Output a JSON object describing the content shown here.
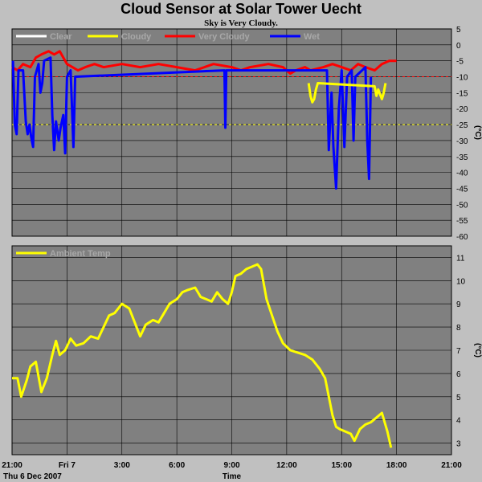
{
  "title": "Cloud Sensor at Solar Tower Uecht",
  "subtitle": "Sky is Very Cloudy.",
  "colors": {
    "background": "#c0c0c0",
    "plot_background": "#808080",
    "grid": "#000000",
    "clear": "#ffffff",
    "cloudy": "#ffff00",
    "very_cloudy": "#ff0000",
    "wet": "#0000ff",
    "ambient": "#ffff00"
  },
  "x_axis": {
    "ticks": [
      "21:00",
      "Fri 7",
      "3:00",
      "6:00",
      "9:00",
      "12:00",
      "15:00",
      "18:00",
      "21:00"
    ],
    "start_label": "Thu 6 Dec 2007",
    "label": "Time"
  },
  "chart_data": [
    {
      "type": "line",
      "legend": [
        "Clear",
        "Cloudy",
        "Very Cloudy",
        "Wet"
      ],
      "ylabel": "(°C)",
      "ylim": [
        -60,
        5
      ],
      "yticks": [
        5,
        0,
        -5,
        -10,
        -15,
        -20,
        -25,
        -30,
        -35,
        -40,
        -45,
        -50,
        -55,
        -60
      ],
      "reference_lines": [
        {
          "name": "Very Cloudy",
          "value": -10,
          "color": "#ff0000"
        },
        {
          "name": "Cloudy",
          "value": -25,
          "color": "#ffff00"
        }
      ],
      "series": [
        {
          "name": "Very Cloudy",
          "color": "#ff0000",
          "points": [
            [
              0,
              -7
            ],
            [
              0.3,
              -8
            ],
            [
              0.6,
              -6
            ],
            [
              1.0,
              -7
            ],
            [
              1.3,
              -4
            ],
            [
              1.6,
              -3
            ],
            [
              2.0,
              -2
            ],
            [
              2.3,
              -3
            ],
            [
              2.6,
              -2
            ],
            [
              3.0,
              -6
            ],
            [
              3.3,
              -7
            ],
            [
              3.6,
              -8
            ],
            [
              4.0,
              -7
            ],
            [
              4.5,
              -6
            ],
            [
              5.0,
              -7
            ],
            [
              6.0,
              -6
            ],
            [
              7.0,
              -7
            ],
            [
              8.0,
              -6
            ],
            [
              9.0,
              -7
            ],
            [
              10.0,
              -8
            ],
            [
              11.0,
              -6
            ],
            [
              12.0,
              -7
            ],
            [
              12.5,
              -8
            ],
            [
              13.0,
              -7
            ],
            [
              14.0,
              -6
            ],
            [
              14.8,
              -7
            ],
            [
              15.2,
              -9
            ],
            [
              15.5,
              -8
            ],
            [
              16.0,
              -7
            ],
            [
              16.3,
              -8
            ],
            [
              17.0,
              -7
            ],
            [
              17.5,
              -6
            ],
            [
              18.0,
              -7
            ],
            [
              18.5,
              -8
            ],
            [
              18.9,
              -6
            ],
            [
              19.3,
              -7
            ],
            [
              19.8,
              -8
            ],
            [
              20.2,
              -6
            ],
            [
              20.6,
              -5
            ],
            [
              21.0,
              -5
            ]
          ]
        },
        {
          "name": "Wet",
          "color": "#0000ff",
          "points": [
            [
              0.05,
              -5
            ],
            [
              0.15,
              -25
            ],
            [
              0.25,
              -28
            ],
            [
              0.35,
              -8
            ],
            [
              0.6,
              -8
            ],
            [
              0.75,
              -24
            ],
            [
              0.85,
              -28
            ],
            [
              0.95,
              -25
            ],
            [
              1.05,
              -29
            ],
            [
              1.15,
              -32
            ],
            [
              1.25,
              -10
            ],
            [
              1.45,
              -6
            ],
            [
              1.55,
              -15
            ],
            [
              1.65,
              -12
            ],
            [
              1.75,
              -5
            ],
            [
              2.1,
              -4
            ],
            [
              2.2,
              -22
            ],
            [
              2.3,
              -33
            ],
            [
              2.4,
              -24
            ],
            [
              2.55,
              -30
            ],
            [
              2.65,
              -26
            ],
            [
              2.8,
              -22
            ],
            [
              2.9,
              -34
            ],
            [
              3.0,
              -10
            ],
            [
              3.2,
              -8
            ],
            [
              3.35,
              -32
            ],
            [
              3.45,
              -10
            ],
            [
              11.6,
              -8
            ],
            [
              11.65,
              -26
            ],
            [
              11.7,
              -8
            ],
            [
              17.2,
              -8
            ],
            [
              17.3,
              -33
            ],
            [
              17.45,
              -15
            ],
            [
              17.55,
              -32
            ],
            [
              17.7,
              -45
            ],
            [
              17.85,
              -20
            ],
            [
              18.0,
              -8
            ],
            [
              18.15,
              -32
            ],
            [
              18.3,
              -10
            ],
            [
              18.55,
              -8
            ],
            [
              18.65,
              -30
            ],
            [
              18.75,
              -10
            ],
            [
              19.3,
              -7
            ],
            [
              19.4,
              -30
            ],
            [
              19.5,
              -42
            ],
            [
              19.6,
              -10
            ]
          ]
        },
        {
          "name": "Cloudy",
          "color": "#ffff00",
          "points": [
            [
              16.2,
              -12
            ],
            [
              16.3,
              -16
            ],
            [
              16.4,
              -18
            ],
            [
              16.5,
              -17
            ],
            [
              16.6,
              -14
            ],
            [
              16.7,
              -12
            ],
            [
              19.8,
              -13
            ],
            [
              19.9,
              -16
            ],
            [
              20.0,
              -14
            ],
            [
              20.2,
              -17
            ],
            [
              20.3,
              -15
            ],
            [
              20.4,
              -12
            ]
          ]
        }
      ]
    },
    {
      "type": "line",
      "legend": [
        "Ambient Temp"
      ],
      "ylabel": "(°C)",
      "ylim": [
        2.5,
        11.5
      ],
      "yticks": [
        11,
        10,
        9,
        8,
        7,
        6,
        5,
        4,
        3
      ],
      "series": [
        {
          "name": "Ambient Temp",
          "color": "#ffff00",
          "points": [
            [
              0,
              5.8
            ],
            [
              0.3,
              5.8
            ],
            [
              0.5,
              5.0
            ],
            [
              0.8,
              5.7
            ],
            [
              1.0,
              6.3
            ],
            [
              1.3,
              6.5
            ],
            [
              1.6,
              5.2
            ],
            [
              1.9,
              5.8
            ],
            [
              2.2,
              6.8
            ],
            [
              2.4,
              7.4
            ],
            [
              2.6,
              6.8
            ],
            [
              2.9,
              7.0
            ],
            [
              3.2,
              7.5
            ],
            [
              3.5,
              7.2
            ],
            [
              3.9,
              7.3
            ],
            [
              4.3,
              7.6
            ],
            [
              4.7,
              7.5
            ],
            [
              5.0,
              8.0
            ],
            [
              5.3,
              8.5
            ],
            [
              5.6,
              8.6
            ],
            [
              6.0,
              9.0
            ],
            [
              6.4,
              8.8
            ],
            [
              6.7,
              8.2
            ],
            [
              7.0,
              7.6
            ],
            [
              7.3,
              8.1
            ],
            [
              7.7,
              8.3
            ],
            [
              8.0,
              8.2
            ],
            [
              8.3,
              8.6
            ],
            [
              8.6,
              9.0
            ],
            [
              9.0,
              9.2
            ],
            [
              9.3,
              9.5
            ],
            [
              9.6,
              9.6
            ],
            [
              10.0,
              9.7
            ],
            [
              10.3,
              9.3
            ],
            [
              10.6,
              9.2
            ],
            [
              10.9,
              9.1
            ],
            [
              11.2,
              9.5
            ],
            [
              11.5,
              9.2
            ],
            [
              11.8,
              9.0
            ],
            [
              12.0,
              9.5
            ],
            [
              12.2,
              10.2
            ],
            [
              12.5,
              10.3
            ],
            [
              12.8,
              10.5
            ],
            [
              13.1,
              10.6
            ],
            [
              13.4,
              10.7
            ],
            [
              13.6,
              10.5
            ],
            [
              13.9,
              9.2
            ],
            [
              14.2,
              8.5
            ],
            [
              14.5,
              7.8
            ],
            [
              14.8,
              7.3
            ],
            [
              15.2,
              7.0
            ],
            [
              15.6,
              6.9
            ],
            [
              16.0,
              6.8
            ],
            [
              16.4,
              6.6
            ],
            [
              16.8,
              6.2
            ],
            [
              17.1,
              5.8
            ],
            [
              17.3,
              5.0
            ],
            [
              17.5,
              4.2
            ],
            [
              17.7,
              3.7
            ],
            [
              17.9,
              3.6
            ],
            [
              18.2,
              3.5
            ],
            [
              18.5,
              3.4
            ],
            [
              18.7,
              3.1
            ],
            [
              19.0,
              3.6
            ],
            [
              19.3,
              3.8
            ],
            [
              19.6,
              3.9
            ],
            [
              19.9,
              4.1
            ],
            [
              20.2,
              4.3
            ],
            [
              20.5,
              3.5
            ],
            [
              20.7,
              2.8
            ]
          ]
        }
      ]
    }
  ]
}
